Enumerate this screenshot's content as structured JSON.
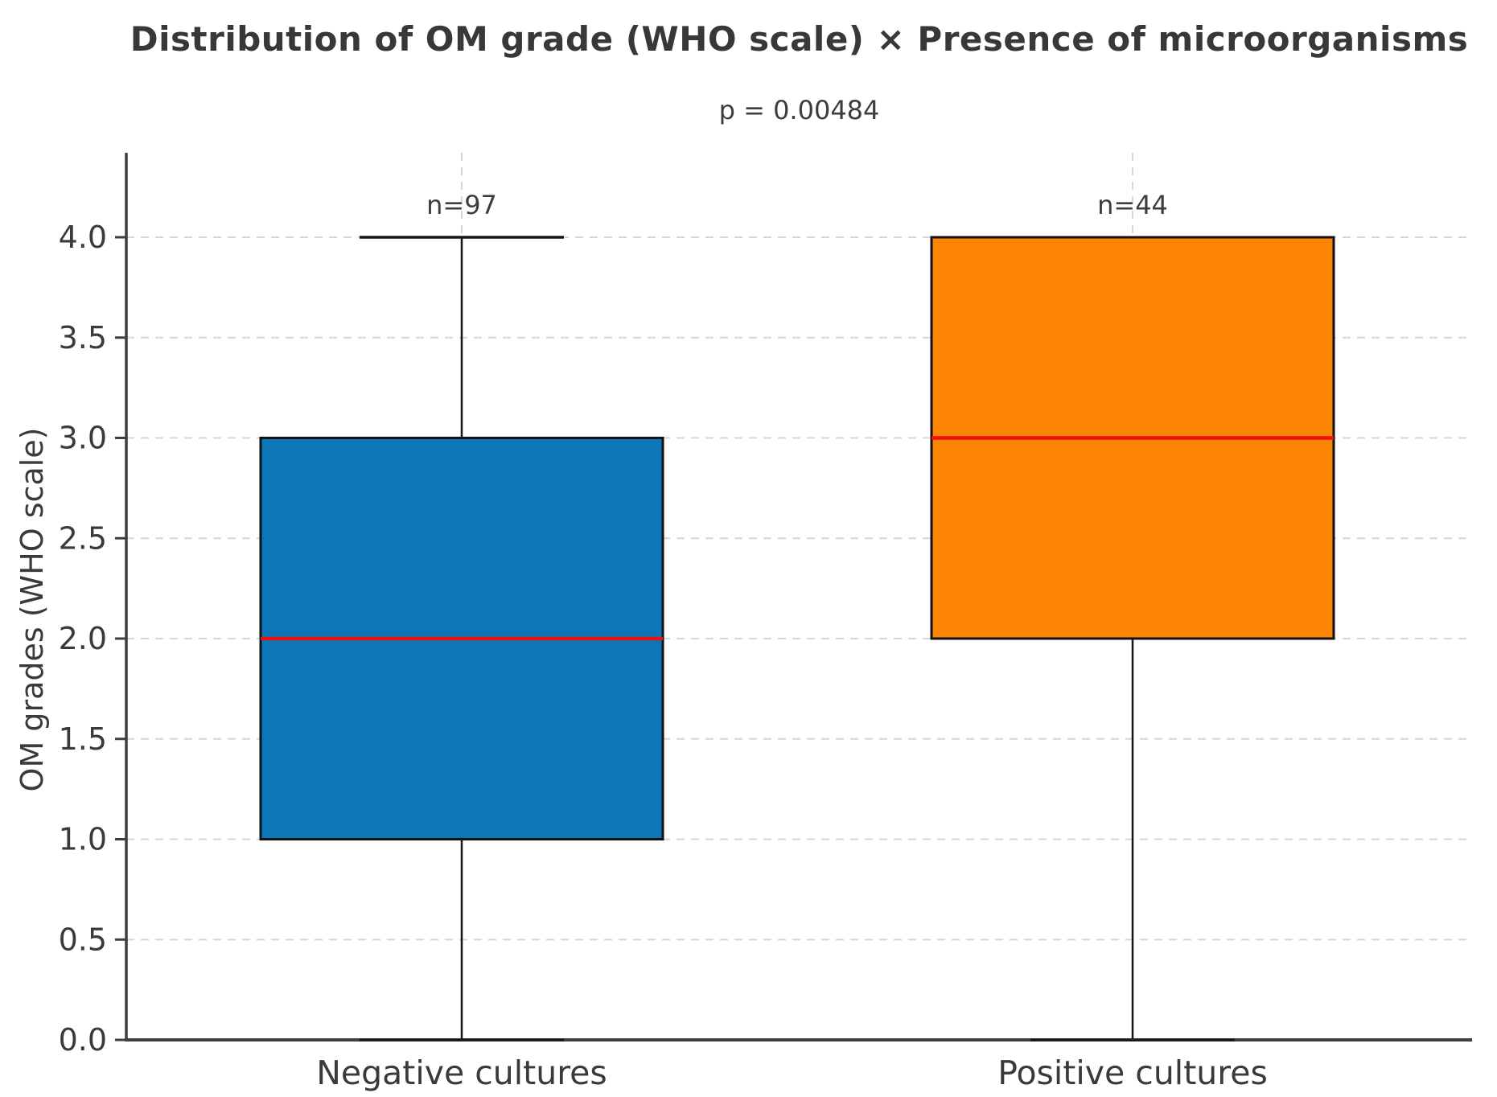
{
  "chart_data": {
    "type": "box",
    "title": "Distribution of OM grade (WHO scale) × Presence of microorganisms",
    "subtitle": "p = 0.00484",
    "ylabel": "OM grades (WHO scale)",
    "xlabel": "",
    "categories": [
      "Negative cultures",
      "Positive cultures"
    ],
    "yticks": [
      0.0,
      0.5,
      1.0,
      1.5,
      2.0,
      2.5,
      3.0,
      3.5,
      4.0
    ],
    "ytick_labels": [
      "0.0",
      "0.5",
      "1.0",
      "1.5",
      "2.0",
      "2.5",
      "3.0",
      "3.5",
      "4.0"
    ],
    "ylim": [
      0.0,
      4.42
    ],
    "grid": "dashed horizontal gridlines at every 0.5 plus dashed vertical gridlines at each category center; top and right spines hidden",
    "legend": "none",
    "series": [
      {
        "name": "Negative cultures",
        "n": 97,
        "label_n": "n=97",
        "whisker_low": 0.0,
        "q1": 1.0,
        "median": 2.0,
        "q3": 3.0,
        "whisker_high": 4.0,
        "fill": "#0d76b8"
      },
      {
        "name": "Positive cultures",
        "n": 44,
        "label_n": "n=44",
        "whisker_low": 0.0,
        "q1": 2.0,
        "median": 3.0,
        "q3": 4.0,
        "whisker_high": 4.0,
        "fill": "#fc8405"
      }
    ],
    "colors": {
      "median_line": "#ee1010",
      "box_border": "#111111",
      "whisker": "#161616",
      "grid_line": "#d6d6d6",
      "spine": "#3f3f3f",
      "text": "#3a3a3a",
      "background": "#ffffff"
    }
  }
}
